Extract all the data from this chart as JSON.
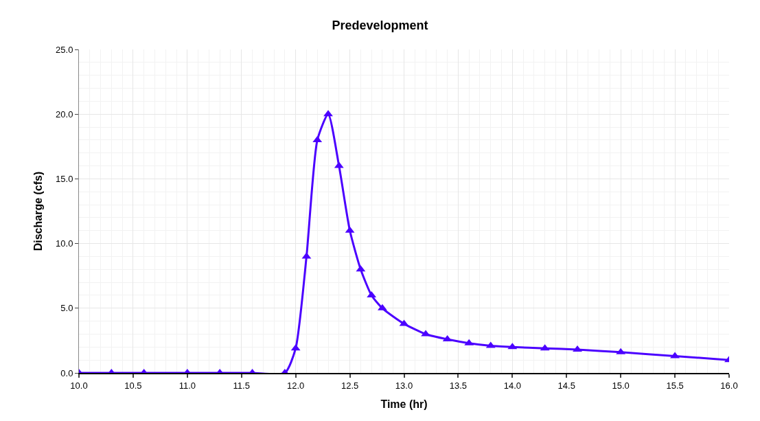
{
  "chart_data": {
    "type": "line",
    "title": "Predevelopment",
    "xlabel": "Time (hr)",
    "ylabel": "Discharge (cfs)",
    "x": [
      10.0,
      10.3,
      10.6,
      11.0,
      11.3,
      11.6,
      11.9,
      12.0,
      12.1,
      12.2,
      12.3,
      12.4,
      12.5,
      12.6,
      12.7,
      12.8,
      13.0,
      13.2,
      13.4,
      13.6,
      13.8,
      14.0,
      14.3,
      14.6,
      15.0,
      15.5,
      16.0
    ],
    "series": [
      {
        "color": "#4b00ff",
        "values": [
          0,
          0,
          0,
          0,
          0,
          0,
          0,
          1.9,
          9.0,
          18.0,
          20.0,
          16.0,
          11.0,
          8.0,
          6.0,
          5.0,
          3.8,
          3.0,
          2.6,
          2.3,
          2.1,
          2.0,
          1.9,
          1.8,
          1.6,
          1.3,
          1.0
        ]
      }
    ],
    "xlim": [
      10.0,
      16.0
    ],
    "ylim": [
      0,
      25.0
    ],
    "xticks": [
      {
        "value": 10,
        "label": "10.0"
      },
      {
        "value": 10.5,
        "label": "10.5"
      },
      {
        "value": 11,
        "label": "11.0"
      },
      {
        "value": 11.5,
        "label": "11.5"
      },
      {
        "value": 12,
        "label": "12.0"
      },
      {
        "value": 12.5,
        "label": "12.5"
      },
      {
        "value": 13,
        "label": "13.0"
      },
      {
        "value": 13.5,
        "label": "13.5"
      },
      {
        "value": 14,
        "label": "14.0"
      },
      {
        "value": 14.5,
        "label": "14.5"
      },
      {
        "value": 15,
        "label": "15.0"
      },
      {
        "value": 15.5,
        "label": "15.5"
      },
      {
        "value": 16,
        "label": "16.0"
      }
    ],
    "yticks": [
      {
        "value": 0,
        "label": "0.0"
      },
      {
        "value": 5,
        "label": "5.0"
      },
      {
        "value": 10,
        "label": "10.0"
      },
      {
        "value": 15,
        "label": "15.0"
      },
      {
        "value": 20,
        "label": "20.0"
      },
      {
        "value": 25,
        "label": "25.0"
      }
    ],
    "grid": true,
    "marker": "triangle",
    "line_style": "solid"
  }
}
